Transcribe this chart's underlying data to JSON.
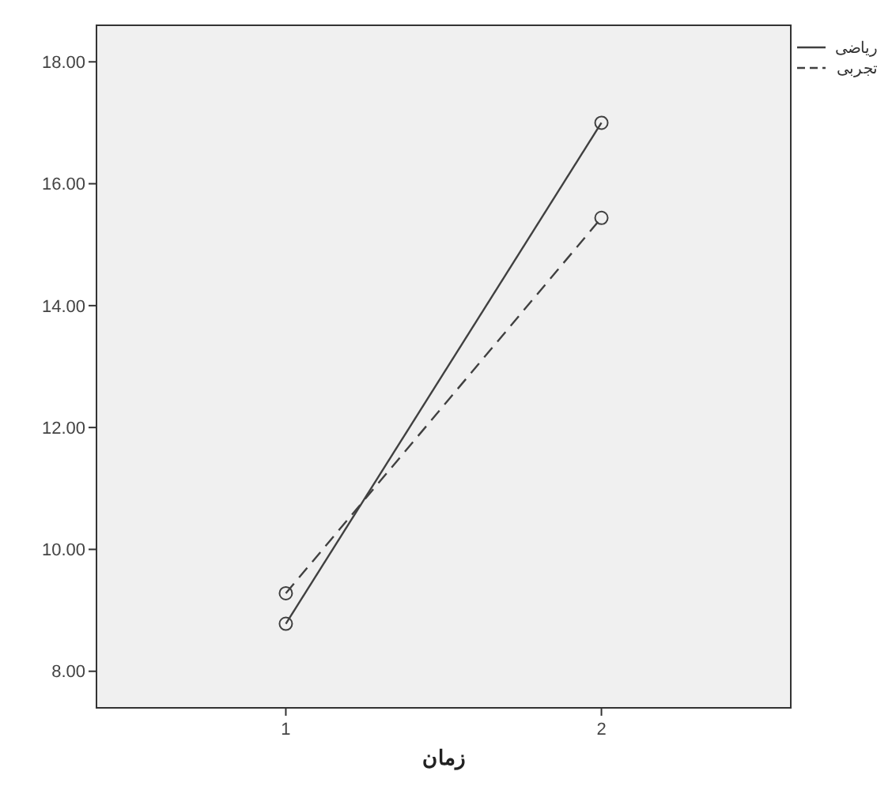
{
  "chart_data": {
    "type": "line",
    "xlabel": "زمان",
    "x": [
      1,
      2
    ],
    "xlim": [
      0.4,
      2.6
    ],
    "xticks": [
      1,
      2
    ],
    "ylim": [
      7.4,
      18.6
    ],
    "yticks": [
      {
        "value": 8,
        "label": "8.00"
      },
      {
        "value": 10,
        "label": "10.00"
      },
      {
        "value": 12,
        "label": "12.00"
      },
      {
        "value": 14,
        "label": "14.00"
      },
      {
        "value": 16,
        "label": "16.00"
      },
      {
        "value": 18,
        "label": "18.00"
      }
    ],
    "marker": "circle",
    "legend": "top right",
    "grid": false,
    "series": [
      {
        "name": "ریاضی",
        "color": "#404040",
        "values": [
          8.78,
          17.0
        ],
        "line_style": "solid"
      },
      {
        "name": "تجربی",
        "color": "#404040",
        "values": [
          9.28,
          15.44
        ],
        "line_style": "dashed"
      }
    ]
  }
}
